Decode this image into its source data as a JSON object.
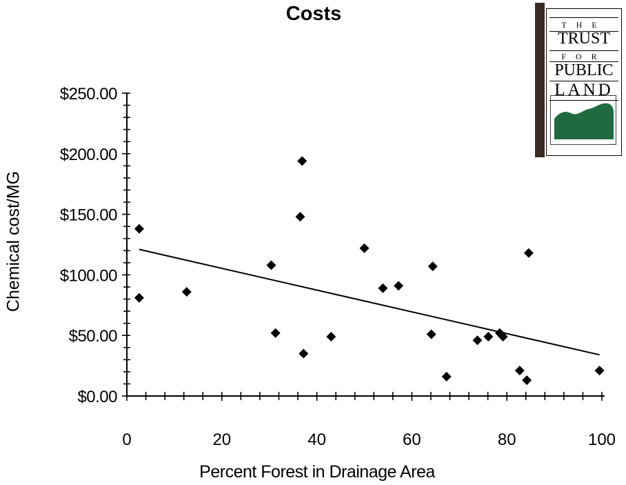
{
  "chart_data": {
    "type": "scatter",
    "title": "Costs",
    "xlabel": "Percent Forest in Drainage Area",
    "ylabel": "Chemical cost/MG",
    "xlim": [
      0,
      100
    ],
    "ylim": [
      0,
      250
    ],
    "xticks": [
      0,
      20,
      40,
      60,
      80,
      100
    ],
    "xtick_labels": [
      "0",
      "20",
      "40",
      "60",
      "80",
      "100"
    ],
    "yticks": [
      0,
      50,
      100,
      150,
      200,
      250
    ],
    "ytick_labels": [
      "$0.00",
      "$50.00",
      "$100.00",
      "$150.00",
      "$200.00",
      "$250.00"
    ],
    "grid": false,
    "marker": "diamond",
    "marker_color": "#000000",
    "points": [
      {
        "x": 2.6,
        "y": 138
      },
      {
        "x": 2.6,
        "y": 81
      },
      {
        "x": 12.6,
        "y": 86
      },
      {
        "x": 30.4,
        "y": 108
      },
      {
        "x": 31.3,
        "y": 52
      },
      {
        "x": 36.5,
        "y": 148
      },
      {
        "x": 36.9,
        "y": 194
      },
      {
        "x": 37.2,
        "y": 35
      },
      {
        "x": 43.0,
        "y": 49
      },
      {
        "x": 50.0,
        "y": 122
      },
      {
        "x": 53.9,
        "y": 89
      },
      {
        "x": 57.2,
        "y": 91
      },
      {
        "x": 64.1,
        "y": 51
      },
      {
        "x": 64.4,
        "y": 107
      },
      {
        "x": 67.3,
        "y": 16
      },
      {
        "x": 73.8,
        "y": 46
      },
      {
        "x": 76.1,
        "y": 49
      },
      {
        "x": 78.5,
        "y": 52
      },
      {
        "x": 79.2,
        "y": 49
      },
      {
        "x": 82.7,
        "y": 21
      },
      {
        "x": 84.2,
        "y": 13
      },
      {
        "x": 84.6,
        "y": 118
      },
      {
        "x": 99.5,
        "y": 21
      }
    ],
    "trendline": {
      "type": "linear",
      "color": "#000000",
      "points": [
        {
          "x": 2.6,
          "y": 121
        },
        {
          "x": 99.5,
          "y": 34
        }
      ]
    }
  },
  "logo": {
    "lines": [
      "THE",
      "TRUST",
      "FOR",
      "PUBLIC",
      "LAND"
    ],
    "hill_color": "#1f6b3f"
  }
}
